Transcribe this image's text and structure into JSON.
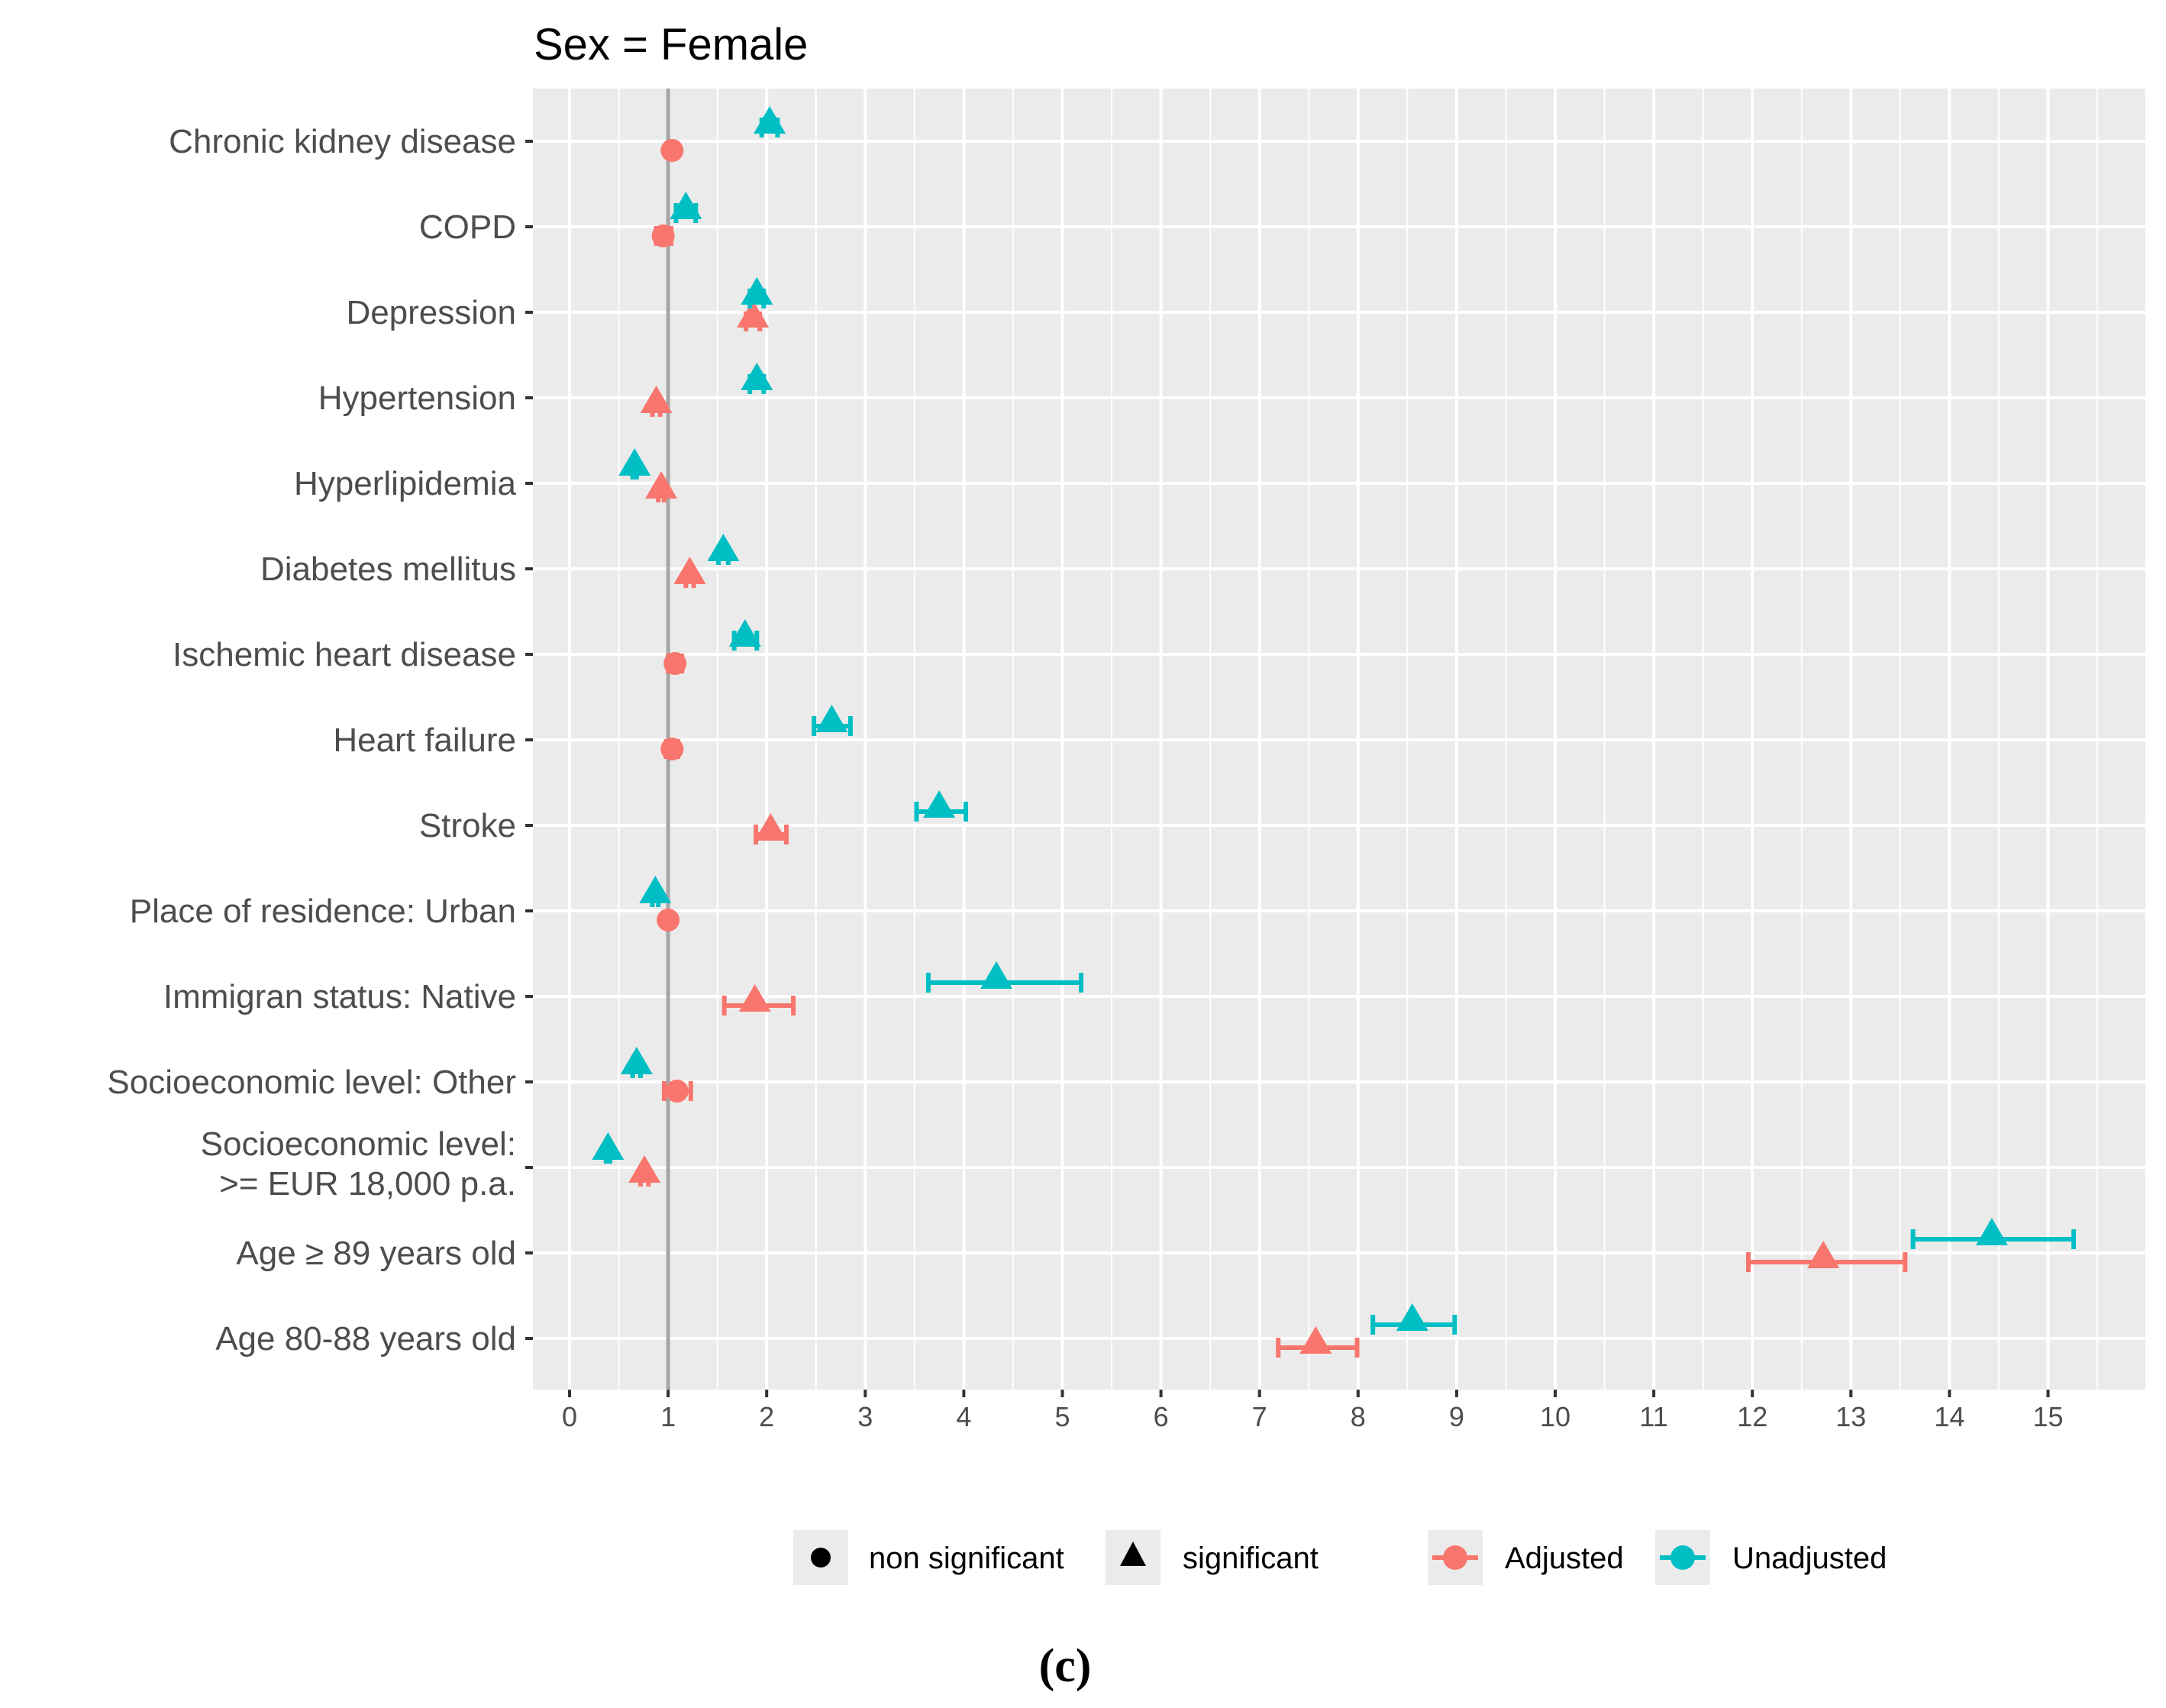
{
  "chart_data": {
    "type": "forest",
    "title": "Sex = Female",
    "caption": "(c)",
    "xlabel": "",
    "ylabel": "",
    "xlim": [
      -0.4,
      15.8
    ],
    "x_ticks": [
      0,
      1,
      2,
      3,
      4,
      5,
      6,
      7,
      8,
      9,
      10,
      11,
      12,
      13,
      14,
      15
    ],
    "reference_line": 1,
    "grid": true,
    "colors": {
      "Adjusted": "#F8766D",
      "Unadjusted": "#00BFC4",
      "reference": "#A6A6A6",
      "panel": "#EBEBEB"
    },
    "legend": {
      "placement": "bottom",
      "shape_entries": [
        {
          "label": "non significant",
          "shape": "circle"
        },
        {
          "label": "significant",
          "shape": "triangle"
        }
      ],
      "color_entries": [
        {
          "label": "Adjusted"
        },
        {
          "label": "Unadjusted"
        }
      ]
    },
    "categories": [
      {
        "label": [
          "Chronic kidney disease"
        ],
        "Adjusted": {
          "or": 1.04,
          "lo": 1.0,
          "hi": 1.08,
          "sig": false
        },
        "Unadjusted": {
          "or": 2.03,
          "lo": 1.95,
          "hi": 2.11,
          "sig": true
        }
      },
      {
        "label": [
          "COPD"
        ],
        "Adjusted": {
          "or": 0.95,
          "lo": 0.88,
          "hi": 1.03,
          "sig": false
        },
        "Unadjusted": {
          "or": 1.18,
          "lo": 1.08,
          "hi": 1.28,
          "sig": true
        }
      },
      {
        "label": [
          "Depression"
        ],
        "Adjusted": {
          "or": 1.86,
          "lo": 1.79,
          "hi": 1.93,
          "sig": true
        },
        "Unadjusted": {
          "or": 1.9,
          "lo": 1.83,
          "hi": 1.97,
          "sig": true
        }
      },
      {
        "label": [
          "Hypertension"
        ],
        "Adjusted": {
          "or": 0.88,
          "lo": 0.84,
          "hi": 0.92,
          "sig": true
        },
        "Unadjusted": {
          "or": 1.9,
          "lo": 1.83,
          "hi": 1.97,
          "sig": true
        }
      },
      {
        "label": [
          "Hyperlipidemia"
        ],
        "Adjusted": {
          "or": 0.93,
          "lo": 0.9,
          "hi": 0.96,
          "sig": true
        },
        "Unadjusted": {
          "or": 0.66,
          "lo": 0.64,
          "hi": 0.68,
          "sig": true
        }
      },
      {
        "label": [
          "Diabetes mellitus"
        ],
        "Adjusted": {
          "or": 1.22,
          "lo": 1.18,
          "hi": 1.26,
          "sig": true
        },
        "Unadjusted": {
          "or": 1.56,
          "lo": 1.51,
          "hi": 1.61,
          "sig": true
        }
      },
      {
        "label": [
          "Ischemic heart disease"
        ],
        "Adjusted": {
          "or": 1.07,
          "lo": 1.0,
          "hi": 1.14,
          "sig": false
        },
        "Unadjusted": {
          "or": 1.78,
          "lo": 1.67,
          "hi": 1.9,
          "sig": true
        }
      },
      {
        "label": [
          "Heart failure"
        ],
        "Adjusted": {
          "or": 1.04,
          "lo": 0.98,
          "hi": 1.1,
          "sig": false
        },
        "Unadjusted": {
          "or": 2.66,
          "lo": 2.48,
          "hi": 2.85,
          "sig": true
        }
      },
      {
        "label": [
          "Stroke"
        ],
        "Adjusted": {
          "or": 2.04,
          "lo": 1.89,
          "hi": 2.2,
          "sig": true
        },
        "Unadjusted": {
          "or": 3.75,
          "lo": 3.52,
          "hi": 4.02,
          "sig": true
        }
      },
      {
        "label": [
          "Place of residence: Urban"
        ],
        "Adjusted": {
          "or": 1.0,
          "lo": 0.97,
          "hi": 1.03,
          "sig": false
        },
        "Unadjusted": {
          "or": 0.87,
          "lo": 0.84,
          "hi": 0.9,
          "sig": true
        }
      },
      {
        "label": [
          "Immigran status: Native"
        ],
        "Adjusted": {
          "or": 1.88,
          "lo": 1.57,
          "hi": 2.27,
          "sig": true
        },
        "Unadjusted": {
          "or": 4.33,
          "lo": 3.64,
          "hi": 5.19,
          "sig": true
        }
      },
      {
        "label": [
          "Socioeconomic level: Other"
        ],
        "Adjusted": {
          "or": 1.09,
          "lo": 0.96,
          "hi": 1.23,
          "sig": false
        },
        "Unadjusted": {
          "or": 0.68,
          "lo": 0.64,
          "hi": 0.72,
          "sig": true
        }
      },
      {
        "label": [
          "Socioeconomic level:",
          ">= EUR 18,000 p.a."
        ],
        "Adjusted": {
          "or": 0.76,
          "lo": 0.72,
          "hi": 0.8,
          "sig": true
        },
        "Unadjusted": {
          "or": 0.39,
          "lo": 0.37,
          "hi": 0.41,
          "sig": true
        }
      },
      {
        "label": [
          "Age ≥ 89 years old"
        ],
        "Adjusted": {
          "or": 12.72,
          "lo": 11.96,
          "hi": 13.55,
          "sig": true
        },
        "Unadjusted": {
          "or": 14.43,
          "lo": 13.63,
          "hi": 15.26,
          "sig": true
        }
      },
      {
        "label": [
          "Age 80-88 years old"
        ],
        "Adjusted": {
          "or": 7.57,
          "lo": 7.19,
          "hi": 7.99,
          "sig": true
        },
        "Unadjusted": {
          "or": 8.55,
          "lo": 8.15,
          "hi": 8.98,
          "sig": true
        }
      }
    ]
  }
}
